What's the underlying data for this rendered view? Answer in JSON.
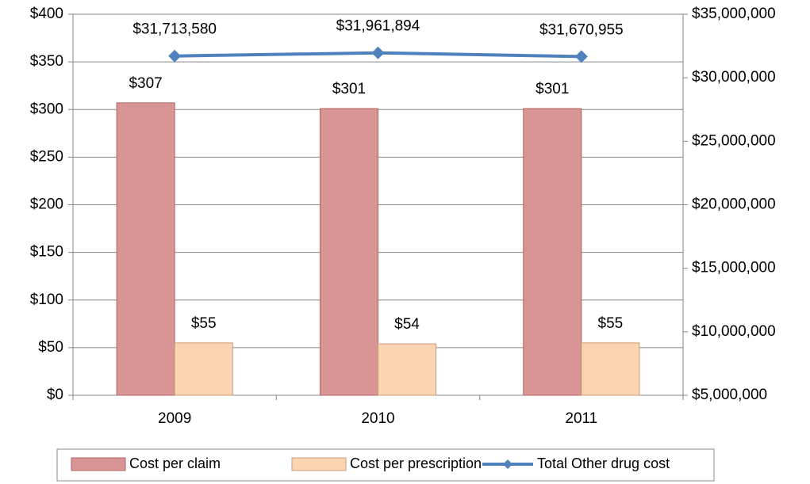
{
  "chart_data": {
    "type": "bar",
    "categories": [
      "2009",
      "2010",
      "2011"
    ],
    "series": [
      {
        "name": "Cost per claim",
        "type": "bar",
        "color": "#d99594",
        "values": [
          307,
          301,
          301
        ],
        "value_labels": [
          "$307",
          "$301",
          "$301"
        ]
      },
      {
        "name": "Cost per prescription",
        "type": "bar",
        "color": "#fbd4b4",
        "values": [
          55,
          54,
          55
        ],
        "value_labels": [
          "$55",
          "$54",
          "$55"
        ]
      },
      {
        "name": "Total Other drug cost",
        "type": "line",
        "axis": "y2",
        "color": "#4f81bd",
        "values": [
          31713580,
          31961894,
          31670955
        ],
        "value_labels": [
          "$31,713,580",
          "$31,961,894",
          "$31,670,955"
        ]
      }
    ],
    "ylim": [
      0,
      400
    ],
    "yticks": [
      {
        "value": 0,
        "label": "$0"
      },
      {
        "value": 50,
        "label": "$50"
      },
      {
        "value": 100,
        "label": "$100"
      },
      {
        "value": 150,
        "label": "$150"
      },
      {
        "value": 200,
        "label": "$200"
      },
      {
        "value": 250,
        "label": "$250"
      },
      {
        "value": 300,
        "label": "$300"
      },
      {
        "value": 350,
        "label": "$350"
      },
      {
        "value": 400,
        "label": "$400"
      }
    ],
    "y2lim": [
      5000000,
      35000000
    ],
    "y2ticks": [
      {
        "value": 5000000,
        "label": "$5,000,000"
      },
      {
        "value": 10000000,
        "label": "$10,000,000"
      },
      {
        "value": 15000000,
        "label": "$15,000,000"
      },
      {
        "value": 20000000,
        "label": "$20,000,000"
      },
      {
        "value": 25000000,
        "label": "$25,000,000"
      },
      {
        "value": 30000000,
        "label": "$30,000,000"
      },
      {
        "value": 35000000,
        "label": "$35,000,000"
      }
    ],
    "grid": true,
    "legend": "bottom"
  }
}
